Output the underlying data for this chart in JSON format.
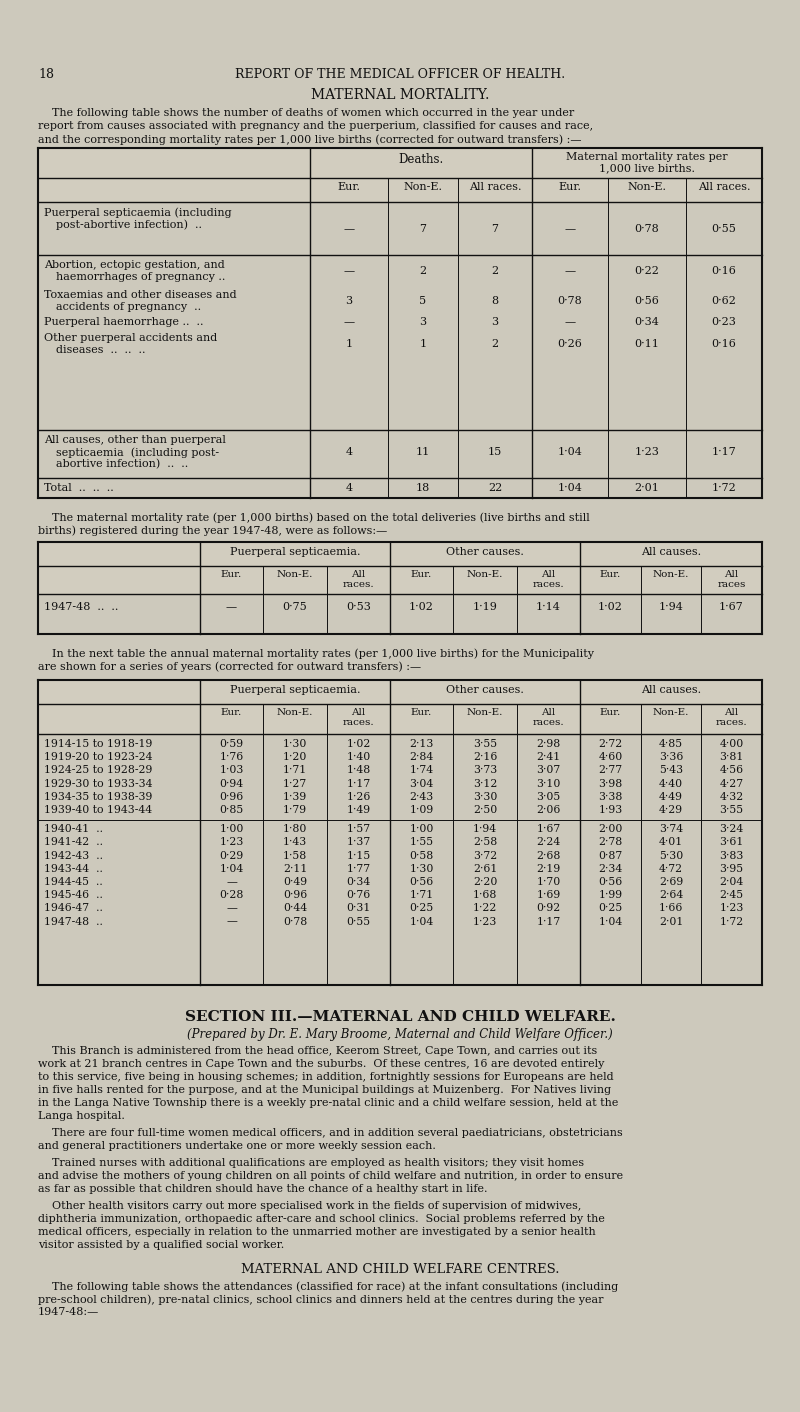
{
  "bg_color": "#cdc9bc",
  "text_color": "#1a1a1a",
  "page_number": "18",
  "header": "REPORT OF THE MEDICAL OFFICER OF HEALTH.",
  "title": "MATERNAL MORTALITY.",
  "para1_line1": "    The following table shows the number of deaths of women which occurred in the year under",
  "para1_line2": "report from causes associated with pregnancy and the puerperium, classified for causes and race,",
  "para1_line3": "and the corresponding mortality rates per 1,000 live births (corrected for outward transfers) :—",
  "t1_sub_labels": [
    "Eur.",
    "Non-E.",
    "All races.",
    "Eur.",
    "Non-E.",
    "All races."
  ],
  "t1_top_labels": [
    "Deaths.",
    "Maternal mortality rates per\n1,000 live births."
  ],
  "t1_rows": [
    [
      "Puerperal septicaemia (including",
      "post-abortive infection)  ..",
      "—",
      "7",
      "7",
      "—",
      "0·78",
      "0·55"
    ],
    [
      "Abortion, ectopic gestation, and",
      "haemorrhages of pregnancy ..",
      "—",
      "2",
      "2",
      "—",
      "0·22",
      "0·16"
    ],
    [
      "Toxaemias and other diseases and",
      "accidents of pregnancy  ..",
      "3",
      "5",
      "8",
      "0·78",
      "0·56",
      "0·62"
    ],
    [
      "Puerperal haemorrhage ..  ..",
      "",
      "—",
      "3",
      "3",
      "—",
      "0·34",
      "0·23"
    ],
    [
      "Other puerperal accidents and",
      "diseases  ..  ..  ..",
      "1",
      "1",
      "2",
      "0·26",
      "0·11",
      "0·16"
    ]
  ],
  "t1_subtotal_lines": [
    "All causes, other than puerperal",
    "septicaemia  (including post-",
    "abortive infection)  ..  .."
  ],
  "t1_subtotal_vals": [
    "4",
    "11",
    "15",
    "1·04",
    "1·23",
    "1·17"
  ],
  "t1_total_vals": [
    "4",
    "18",
    "22",
    "1·04",
    "2·01",
    "1·72"
  ],
  "para2_line1": "    The maternal mortality rate (per 1,000 births) based on the total deliveries (live births and still",
  "para2_line2": "births) registered during the year 1947-48, were as follows:—",
  "t2_grp_labels": [
    "Puerperal septicaemia.",
    "Other causes.",
    "All causes."
  ],
  "t2_sub_labels": [
    "Eur.",
    "Non-E.",
    "All\nraces.",
    "Eur.",
    "Non-E.",
    "All\nraces.",
    "Eur.",
    "Non-E.",
    "All\nraces"
  ],
  "t2_row": [
    "—",
    "0·75",
    "0·53",
    "1·02",
    "1·19",
    "1·14",
    "1·02",
    "1·94",
    "1·67"
  ],
  "para3_line1": "    In the next table the annual maternal mortality rates (per 1,000 live births) for the Municipality",
  "para3_line2": "are shown for a series of years (corrected for outward transfers) :—",
  "t3_grp_labels": [
    "Puerperal septicaemia.",
    "Other causes.",
    "All causes."
  ],
  "t3_sub_labels": [
    "Eur.",
    "Non-E.",
    "All\nraces.",
    "Eur.",
    "Non-E.",
    "All\nraces.",
    "Eur.",
    "Non-E.",
    "All\nraces."
  ],
  "t3_rows": [
    [
      "1914-15 to 1918-19",
      "0·59",
      "1·30",
      "1·02",
      "2·13",
      "3·55",
      "2·98",
      "2·72",
      "4·85",
      "4·00"
    ],
    [
      "1919-20 to 1923-24",
      "1·76",
      "1·20",
      "1·40",
      "2·84",
      "2·16",
      "2·41",
      "4·60",
      "3·36",
      "3·81"
    ],
    [
      "1924-25 to 1928-29",
      "1·03",
      "1·71",
      "1·48",
      "1·74",
      "3·73",
      "3·07",
      "2·77",
      "5·43",
      "4·56"
    ],
    [
      "1929-30 to 1933-34",
      "0·94",
      "1·27",
      "1·17",
      "3·04",
      "3·12",
      "3·10",
      "3·98",
      "4·40",
      "4·27"
    ],
    [
      "1934-35 to 1938-39",
      "0·96",
      "1·39",
      "1·26",
      "2·43",
      "3·30",
      "3·05",
      "3·38",
      "4·49",
      "4·32"
    ],
    [
      "1939-40 to 1943-44",
      "0·85",
      "1·79",
      "1·49",
      "1·09",
      "2·50",
      "2·06",
      "1·93",
      "4·29",
      "3·55"
    ],
    [
      "1940-41  ..",
      "1·00",
      "1·80",
      "1·57",
      "1·00",
      "1·94",
      "1·67",
      "2·00",
      "3·74",
      "3·24"
    ],
    [
      "1941-42  ..",
      "1·23",
      "1·43",
      "1·37",
      "1·55",
      "2·58",
      "2·24",
      "2·78",
      "4·01",
      "3·61"
    ],
    [
      "1942-43  ..",
      "0·29",
      "1·58",
      "1·15",
      "0·58",
      "3·72",
      "2·68",
      "0·87",
      "5·30",
      "3·83"
    ],
    [
      "1943-44  ..",
      "1·04",
      "2·11",
      "1·77",
      "1·30",
      "2·61",
      "2·19",
      "2·34",
      "4·72",
      "3·95"
    ],
    [
      "1944-45  ..",
      "—",
      "0·49",
      "0·34",
      "0·56",
      "2·20",
      "1·70",
      "0·56",
      "2·69",
      "2·04"
    ],
    [
      "1945-46  ..",
      "0·28",
      "0·96",
      "0·76",
      "1·71",
      "1·68",
      "1·69",
      "1·99",
      "2·64",
      "2·45"
    ],
    [
      "1946-47  ..",
      "—",
      "0·44",
      "0·31",
      "0·25",
      "1·22",
      "0·92",
      "0·25",
      "1·66",
      "1·23"
    ],
    [
      "1947-48  ..",
      "—",
      "0·78",
      "0·55",
      "1·04",
      "1·23",
      "1·17",
      "1·04",
      "2·01",
      "1·72"
    ]
  ],
  "section_title": "SECTION III.—MATERNAL AND CHILD WELFARE.",
  "section_subtitle": "(Prepared by Dr. E. Mary Broome, Maternal and Child Welfare Officer.)",
  "sec_para1_l1": "    This Branch is administered from the head office, Keerom Street, Cape Town, and carries out its",
  "sec_para1_l2": "work at 21 branch centres in Cape Town and the suburbs.  Of these centres, 16 are devoted entirely",
  "sec_para1_l3": "to this service, five being in housing schemes; in addition, fortnightly sessions for Europeans are held",
  "sec_para1_l4": "in five halls rented for the purpose, and at the Municipal buildings at Muizenberg.  For Natives living",
  "sec_para1_l5": "in the Langa Native Township there is a weekly pre-natal clinic and a child welfare session, held at the",
  "sec_para1_l6": "Langa hospital.",
  "sec_para2_l1": "    There are four full-time women medical officers, and in addition several paediatricians, obstetricians",
  "sec_para2_l2": "and general practitioners undertake one or more weekly session each.",
  "sec_para3_l1": "    Trained nurses with additional qualifications are employed as health visitors; they visit homes",
  "sec_para3_l2": "and advise the mothers of young children on all points of child welfare and nutrition, in order to ensure",
  "sec_para3_l3": "as far as possible that children should have the chance of a healthy start in life.",
  "sec_para4_l1": "    Other health visitors carry out more specialised work in the fields of supervision of midwives,",
  "sec_para4_l2": "diphtheria immunization, orthopaedic after-care and school clinics.  Social problems referred by the",
  "sec_para4_l3": "medical officers, especially in relation to the unmarried mother are investigated by a senior health",
  "sec_para4_l4": "visitor assisted by a qualified social worker.",
  "centres_title": "MATERNAL AND CHILD WELFARE CENTRES.",
  "centres_l1": "    The following table shows the attendances (classified for race) at the infant consultations (including",
  "centres_l2": "pre-school children), pre-natal clinics, school clinics and dinners held at the centres during the year",
  "centres_l3": "1947-48:—"
}
